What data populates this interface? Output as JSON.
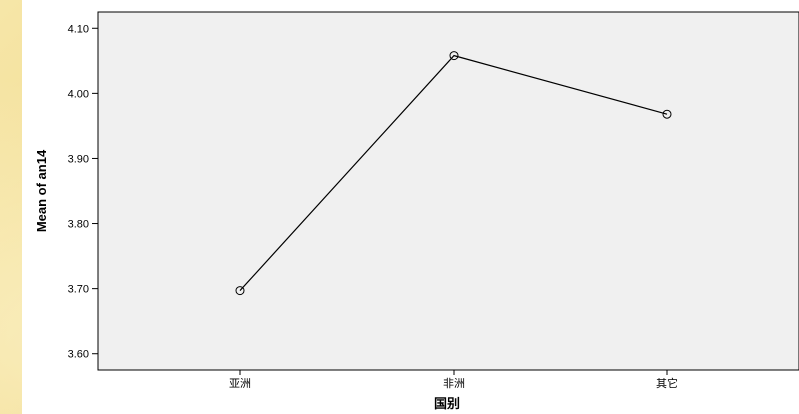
{
  "chart_data": {
    "type": "line",
    "categories": [
      "亚洲",
      "非洲",
      "其它"
    ],
    "series": [
      {
        "values": [
          3.697,
          4.058,
          3.968
        ]
      }
    ],
    "xlabel": "国别",
    "ylabel": "Mean of an14",
    "ylim": [
      3.575,
      4.125
    ],
    "yticks": [
      "3.60",
      "3.70",
      "3.80",
      "3.90",
      "4.00",
      "4.10"
    ],
    "grid": false,
    "marker": "open-circle",
    "colors": {
      "line": "#000000",
      "plot_bg": "#f0f0f0"
    }
  }
}
